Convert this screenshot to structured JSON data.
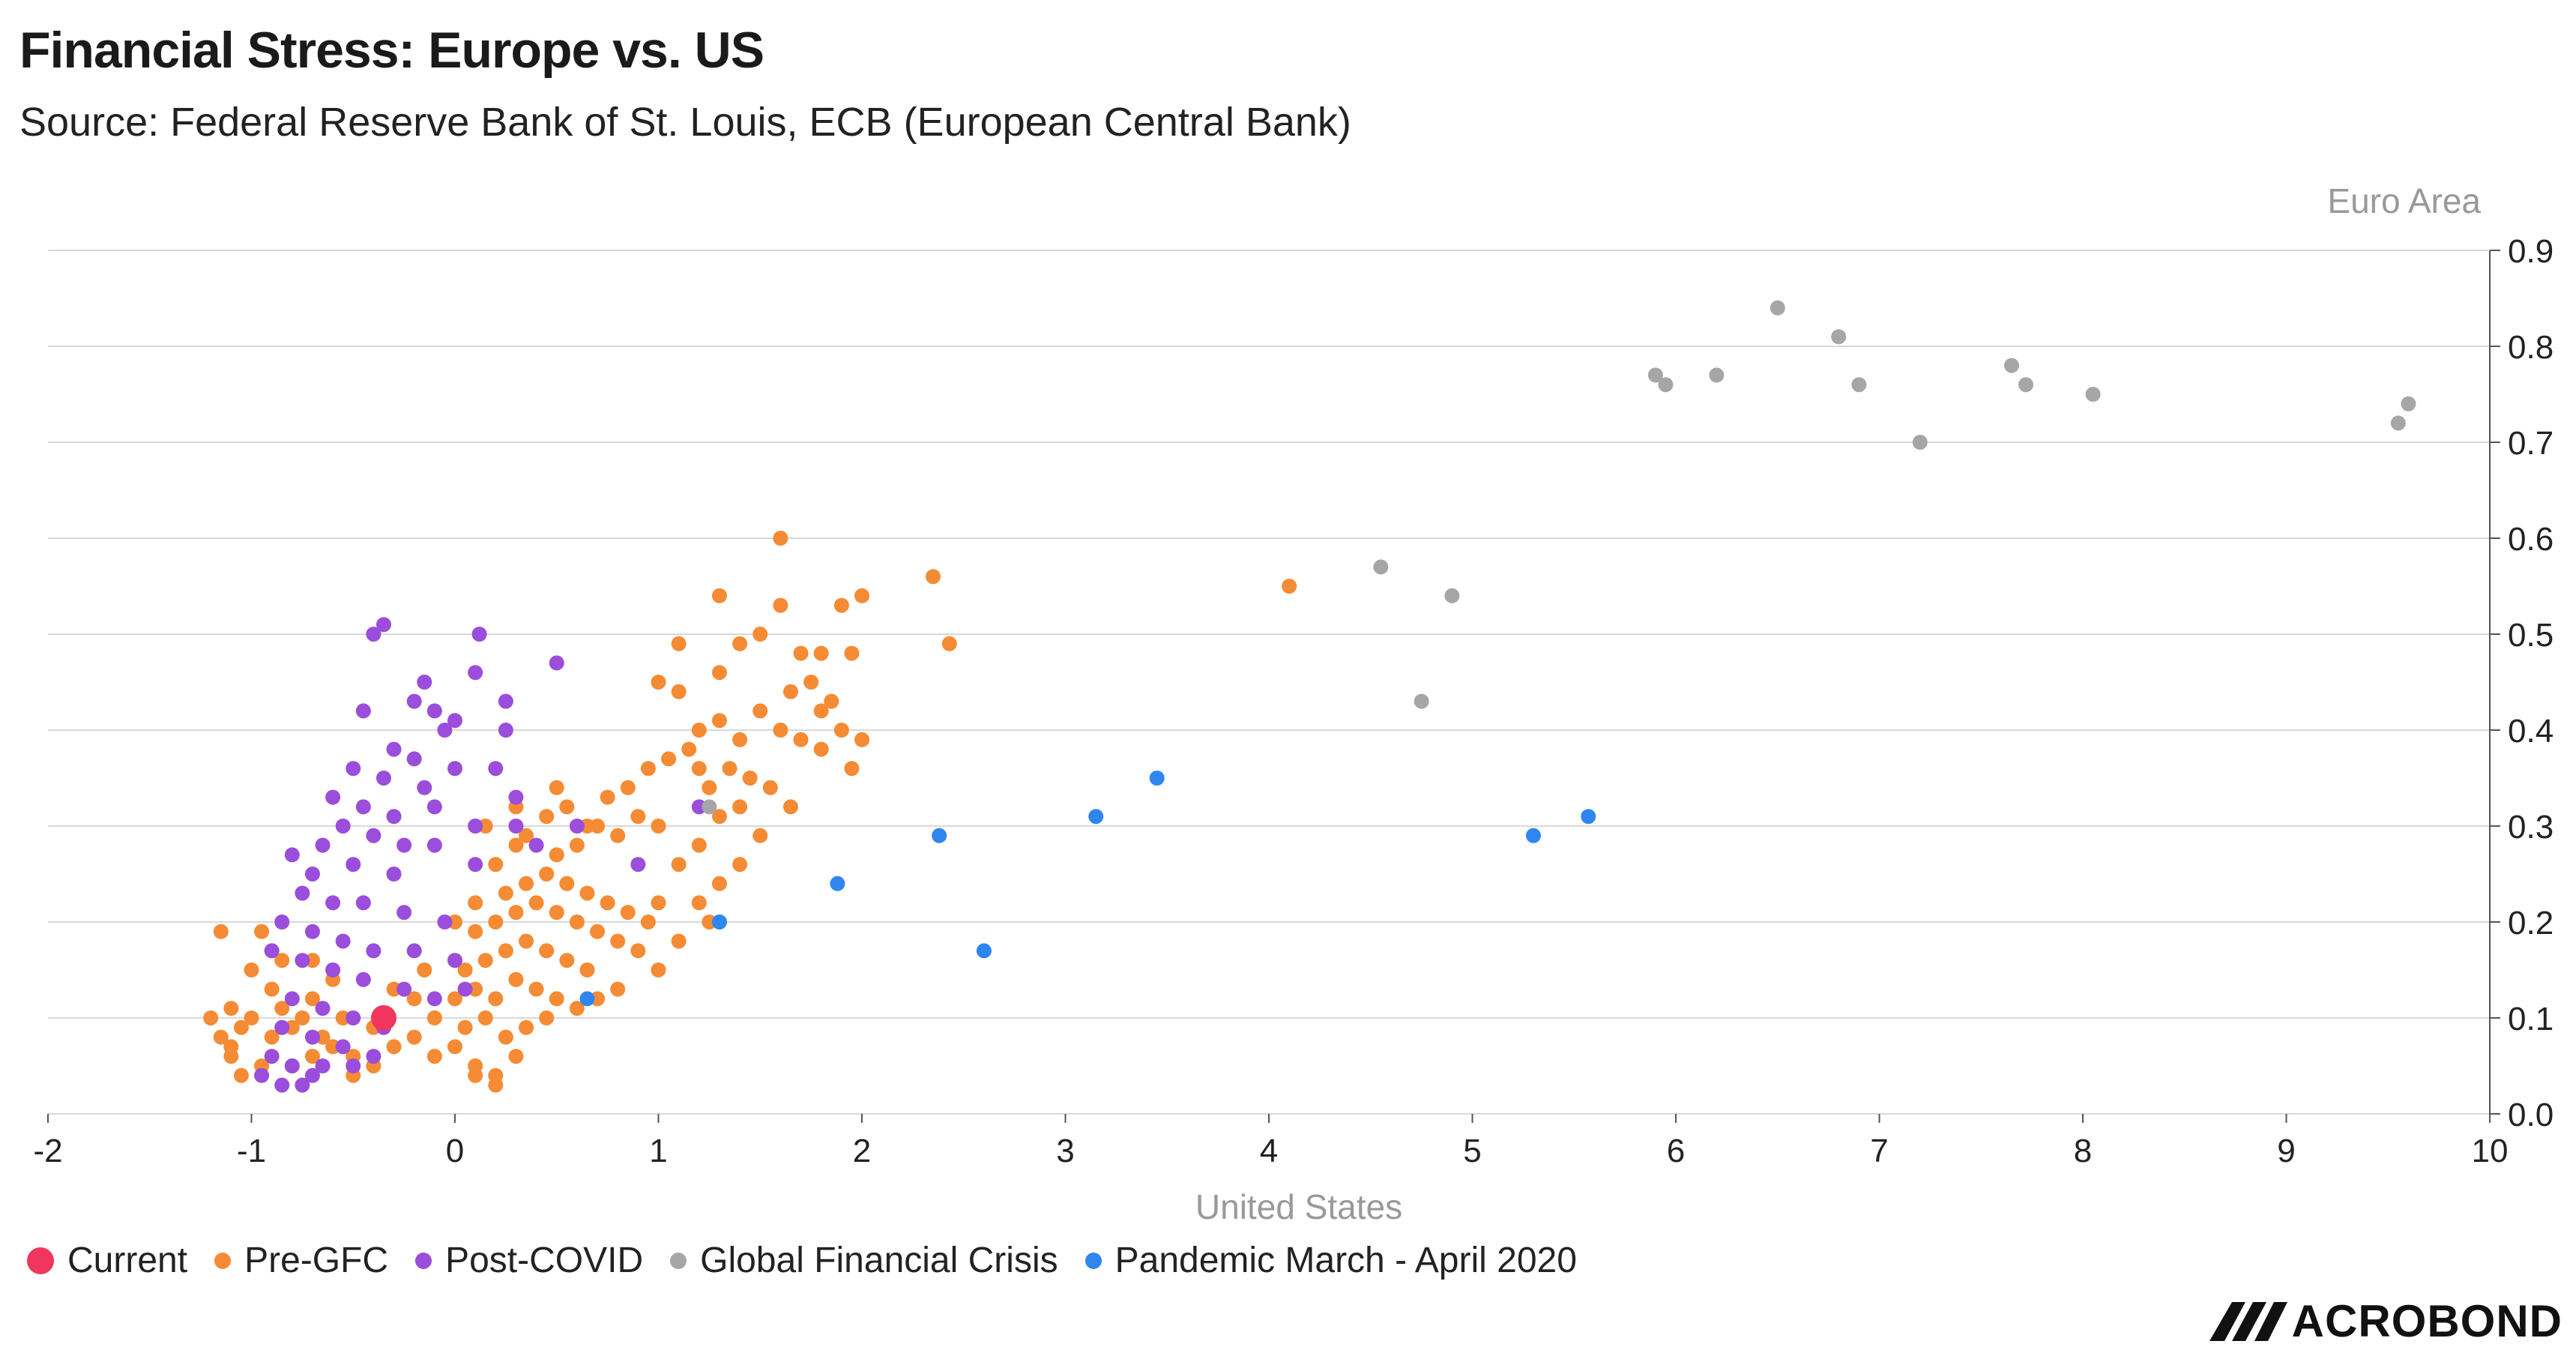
{
  "header": {
    "title": "Financial Stress: Europe vs. US",
    "subtitle": "Source: Federal Reserve Bank of St. Louis, ECB (European Central Bank)"
  },
  "colors": {
    "current": "#f0355f",
    "pre_gfc": "#f58b34",
    "post_covid": "#9b4ddb",
    "gfc": "#a6a6a6",
    "pandemic": "#2f86f0",
    "grid": "#d9d9d9",
    "axis_text": "#222222",
    "axis_label": "#999999"
  },
  "legend": {
    "current": "Current",
    "pre_gfc": "Pre-GFC",
    "post_covid": "Post-COVID",
    "gfc": "Global Financial Crisis",
    "pandemic": "Pandemic March - April 2020"
  },
  "logo": {
    "text": "ACROBOND",
    "icon": "macrobond-logo-icon"
  },
  "chart_data": {
    "type": "scatter",
    "title": "Financial Stress: Europe vs. US",
    "xlabel": "United States",
    "ylabel": "Euro Area",
    "xlim": [
      -2,
      10
    ],
    "ylim": [
      0.0,
      0.9
    ],
    "x_ticks": [
      "-2",
      "-1",
      "0",
      "1",
      "2",
      "3",
      "4",
      "5",
      "6",
      "7",
      "8",
      "9",
      "10"
    ],
    "y_ticks": [
      "0.0",
      "0.1",
      "0.2",
      "0.3",
      "0.4",
      "0.5",
      "0.6",
      "0.7",
      "0.8",
      "0.9"
    ],
    "grid": "horizontal",
    "legend_position": "bottom-left",
    "series": [
      {
        "name": "Pre-GFC",
        "color_key": "pre_gfc",
        "points": [
          [
            -1.0,
            0.1
          ],
          [
            -0.9,
            0.08
          ],
          [
            -0.8,
            0.09
          ],
          [
            -1.1,
            0.07
          ],
          [
            -0.7,
            0.06
          ],
          [
            -0.95,
            0.05
          ],
          [
            -1.05,
            0.09
          ],
          [
            -0.85,
            0.11
          ],
          [
            -0.75,
            0.1
          ],
          [
            -0.65,
            0.08
          ],
          [
            -1.1,
            0.11
          ],
          [
            -0.9,
            0.13
          ],
          [
            -0.6,
            0.07
          ],
          [
            -0.55,
            0.1
          ],
          [
            -0.5,
            0.06
          ],
          [
            -0.4,
            0.09
          ],
          [
            -0.3,
            0.07
          ],
          [
            -0.2,
            0.08
          ],
          [
            -1.05,
            0.04
          ],
          [
            -0.8,
            0.05
          ],
          [
            -0.7,
            0.12
          ],
          [
            -0.6,
            0.14
          ],
          [
            -1.0,
            0.15
          ],
          [
            -0.9,
            0.17
          ],
          [
            -1.15,
            0.19
          ],
          [
            -0.85,
            0.16
          ],
          [
            -0.95,
            0.19
          ],
          [
            -0.7,
            0.16
          ],
          [
            -0.1,
            0.06
          ],
          [
            0.0,
            0.07
          ],
          [
            0.1,
            0.05
          ],
          [
            0.2,
            0.04
          ],
          [
            0.3,
            0.06
          ],
          [
            0.05,
            0.09
          ],
          [
            0.15,
            0.1
          ],
          [
            0.25,
            0.08
          ],
          [
            0.35,
            0.09
          ],
          [
            0.45,
            0.1
          ],
          [
            0.0,
            0.12
          ],
          [
            0.1,
            0.13
          ],
          [
            0.2,
            0.12
          ],
          [
            0.3,
            0.14
          ],
          [
            0.4,
            0.13
          ],
          [
            0.5,
            0.12
          ],
          [
            0.6,
            0.11
          ],
          [
            -0.1,
            0.1
          ],
          [
            0.05,
            0.15
          ],
          [
            0.15,
            0.16
          ],
          [
            0.25,
            0.17
          ],
          [
            0.35,
            0.18
          ],
          [
            0.45,
            0.17
          ],
          [
            0.55,
            0.16
          ],
          [
            0.65,
            0.15
          ],
          [
            0.1,
            0.19
          ],
          [
            0.2,
            0.2
          ],
          [
            0.3,
            0.21
          ],
          [
            0.4,
            0.22
          ],
          [
            0.5,
            0.21
          ],
          [
            0.6,
            0.2
          ],
          [
            0.7,
            0.19
          ],
          [
            0.8,
            0.18
          ],
          [
            0.25,
            0.23
          ],
          [
            0.35,
            0.24
          ],
          [
            0.45,
            0.25
          ],
          [
            0.55,
            0.24
          ],
          [
            0.65,
            0.23
          ],
          [
            0.75,
            0.22
          ],
          [
            0.85,
            0.21
          ],
          [
            0.95,
            0.2
          ],
          [
            1.0,
            0.15
          ],
          [
            0.9,
            0.17
          ],
          [
            0.8,
            0.13
          ],
          [
            0.7,
            0.12
          ],
          [
            0.5,
            0.27
          ],
          [
            0.6,
            0.28
          ],
          [
            0.7,
            0.3
          ],
          [
            0.8,
            0.29
          ],
          [
            0.9,
            0.31
          ],
          [
            1.0,
            0.3
          ],
          [
            0.85,
            0.34
          ],
          [
            0.95,
            0.36
          ],
          [
            1.05,
            0.37
          ],
          [
            1.15,
            0.38
          ],
          [
            0.75,
            0.33
          ],
          [
            0.65,
            0.3
          ],
          [
            0.55,
            0.32
          ],
          [
            0.45,
            0.31
          ],
          [
            0.35,
            0.29
          ],
          [
            0.0,
            0.2
          ],
          [
            0.1,
            0.22
          ],
          [
            0.2,
            0.26
          ],
          [
            0.3,
            0.28
          ],
          [
            1.1,
            0.26
          ],
          [
            1.2,
            0.28
          ],
          [
            1.3,
            0.31
          ],
          [
            1.4,
            0.32
          ],
          [
            1.25,
            0.34
          ],
          [
            1.35,
            0.36
          ],
          [
            1.45,
            0.35
          ],
          [
            1.55,
            0.34
          ],
          [
            1.65,
            0.32
          ],
          [
            1.5,
            0.29
          ],
          [
            1.2,
            0.22
          ],
          [
            1.3,
            0.24
          ],
          [
            1.4,
            0.26
          ],
          [
            1.25,
            0.2
          ],
          [
            1.1,
            0.18
          ],
          [
            1.0,
            0.22
          ],
          [
            1.2,
            0.4
          ],
          [
            1.3,
            0.41
          ],
          [
            1.4,
            0.39
          ],
          [
            1.5,
            0.42
          ],
          [
            1.6,
            0.4
          ],
          [
            1.7,
            0.39
          ],
          [
            1.8,
            0.38
          ],
          [
            1.9,
            0.4
          ],
          [
            2.0,
            0.39
          ],
          [
            1.95,
            0.36
          ],
          [
            1.85,
            0.43
          ],
          [
            1.75,
            0.45
          ],
          [
            1.65,
            0.44
          ],
          [
            1.8,
            0.42
          ],
          [
            1.3,
            0.46
          ],
          [
            1.4,
            0.49
          ],
          [
            1.5,
            0.5
          ],
          [
            1.6,
            0.53
          ],
          [
            1.7,
            0.48
          ],
          [
            1.8,
            0.48
          ],
          [
            1.9,
            0.53
          ],
          [
            2.0,
            0.54
          ],
          [
            1.95,
            0.48
          ],
          [
            1.0,
            0.45
          ],
          [
            1.1,
            0.49
          ],
          [
            1.3,
            0.54
          ],
          [
            1.6,
            0.6
          ],
          [
            2.35,
            0.56
          ],
          [
            2.43,
            0.49
          ],
          [
            1.1,
            0.44
          ],
          [
            1.2,
            0.36
          ],
          [
            0.5,
            0.34
          ],
          [
            0.3,
            0.32
          ],
          [
            0.15,
            0.3
          ],
          [
            -0.2,
            0.12
          ],
          [
            -0.3,
            0.13
          ],
          [
            -0.15,
            0.15
          ],
          [
            0.0,
            0.16
          ],
          [
            0.1,
            0.04
          ],
          [
            0.2,
            0.03
          ],
          [
            4.1,
            0.55
          ],
          [
            -0.5,
            0.04
          ],
          [
            -0.4,
            0.05
          ],
          [
            -1.1,
            0.06
          ],
          [
            -1.15,
            0.08
          ],
          [
            -1.2,
            0.1
          ]
        ]
      },
      {
        "name": "Post-COVID",
        "color_key": "post_covid",
        "points": [
          [
            -0.4,
            0.5
          ],
          [
            -0.35,
            0.51
          ],
          [
            0.12,
            0.5
          ],
          [
            -0.15,
            0.45
          ],
          [
            0.1,
            0.46
          ],
          [
            0.5,
            0.47
          ],
          [
            -0.2,
            0.43
          ],
          [
            -0.1,
            0.42
          ],
          [
            0.25,
            0.43
          ],
          [
            -0.05,
            0.4
          ],
          [
            0.0,
            0.41
          ],
          [
            0.25,
            0.4
          ],
          [
            -0.45,
            0.42
          ],
          [
            -0.3,
            0.38
          ],
          [
            -0.2,
            0.37
          ],
          [
            0.0,
            0.36
          ],
          [
            0.2,
            0.36
          ],
          [
            -0.5,
            0.36
          ],
          [
            -0.35,
            0.35
          ],
          [
            -0.15,
            0.34
          ],
          [
            -0.6,
            0.33
          ],
          [
            -0.45,
            0.32
          ],
          [
            -0.3,
            0.31
          ],
          [
            -0.1,
            0.32
          ],
          [
            0.1,
            0.3
          ],
          [
            0.3,
            0.33
          ],
          [
            -0.55,
            0.3
          ],
          [
            -0.4,
            0.29
          ],
          [
            -0.25,
            0.28
          ],
          [
            -0.65,
            0.28
          ],
          [
            -0.8,
            0.27
          ],
          [
            -0.7,
            0.25
          ],
          [
            -0.5,
            0.26
          ],
          [
            -0.3,
            0.25
          ],
          [
            0.1,
            0.26
          ],
          [
            -0.75,
            0.23
          ],
          [
            -0.6,
            0.22
          ],
          [
            -0.45,
            0.22
          ],
          [
            -0.25,
            0.21
          ],
          [
            -0.05,
            0.2
          ],
          [
            -0.85,
            0.2
          ],
          [
            -0.7,
            0.19
          ],
          [
            -0.55,
            0.18
          ],
          [
            -0.4,
            0.17
          ],
          [
            -0.2,
            0.17
          ],
          [
            0.0,
            0.16
          ],
          [
            -0.9,
            0.17
          ],
          [
            -0.75,
            0.16
          ],
          [
            -0.6,
            0.15
          ],
          [
            -0.45,
            0.14
          ],
          [
            -0.25,
            0.13
          ],
          [
            -0.1,
            0.12
          ],
          [
            0.05,
            0.13
          ],
          [
            -0.8,
            0.12
          ],
          [
            -0.65,
            0.11
          ],
          [
            -0.5,
            0.1
          ],
          [
            -0.35,
            0.09
          ],
          [
            -0.85,
            0.09
          ],
          [
            -0.7,
            0.08
          ],
          [
            -0.55,
            0.07
          ],
          [
            -0.4,
            0.06
          ],
          [
            -0.9,
            0.06
          ],
          [
            -0.8,
            0.05
          ],
          [
            -0.7,
            0.04
          ],
          [
            -0.85,
            0.03
          ],
          [
            -0.95,
            0.04
          ],
          [
            -0.75,
            0.03
          ],
          [
            -0.65,
            0.05
          ],
          [
            -0.5,
            0.05
          ],
          [
            0.3,
            0.3
          ],
          [
            0.4,
            0.28
          ],
          [
            0.6,
            0.3
          ],
          [
            0.9,
            0.26
          ],
          [
            1.2,
            0.32
          ],
          [
            -0.1,
            0.28
          ]
        ]
      },
      {
        "name": "Global Financial Crisis",
        "color_key": "gfc",
        "points": [
          [
            5.9,
            0.77
          ],
          [
            5.95,
            0.76
          ],
          [
            6.2,
            0.77
          ],
          [
            6.5,
            0.84
          ],
          [
            6.8,
            0.81
          ],
          [
            6.9,
            0.76
          ],
          [
            7.2,
            0.7
          ],
          [
            7.65,
            0.78
          ],
          [
            7.72,
            0.76
          ],
          [
            8.05,
            0.75
          ],
          [
            9.55,
            0.72
          ],
          [
            9.6,
            0.74
          ],
          [
            4.55,
            0.57
          ],
          [
            4.9,
            0.54
          ],
          [
            4.75,
            0.43
          ],
          [
            1.3,
            0.2
          ],
          [
            1.25,
            0.32
          ]
        ]
      },
      {
        "name": "Pandemic March - April 2020",
        "color_key": "pandemic",
        "points": [
          [
            0.65,
            0.12
          ],
          [
            1.3,
            0.2
          ],
          [
            1.88,
            0.24
          ],
          [
            2.38,
            0.29
          ],
          [
            2.6,
            0.17
          ],
          [
            3.15,
            0.31
          ],
          [
            3.45,
            0.35
          ],
          [
            5.3,
            0.29
          ],
          [
            5.57,
            0.31
          ]
        ]
      },
      {
        "name": "Current",
        "color_key": "current",
        "points": [
          [
            -0.35,
            0.1
          ]
        ]
      }
    ]
  }
}
